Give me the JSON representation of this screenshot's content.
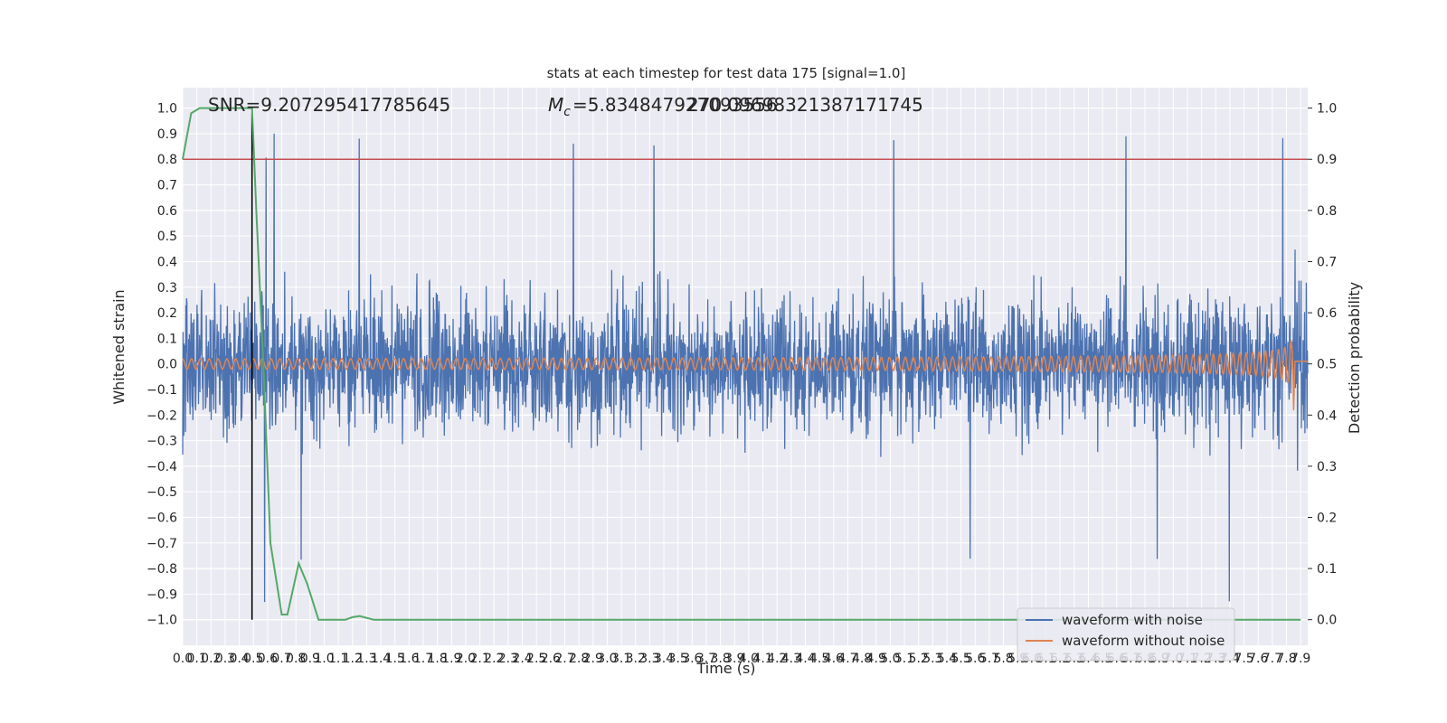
{
  "chart_data": {
    "type": "line",
    "title": "stats at each timestep for test data 175 [signal=1.0]",
    "xlabel": "Time (s)",
    "ylabel": "Whitened strain",
    "y2label": "Detection probability",
    "xlim": [
      0.0,
      7.95
    ],
    "ylim": [
      -1.1,
      1.08
    ],
    "y2lim": [
      -0.05,
      1.04
    ],
    "grid": true,
    "legend_position": "lower-right",
    "x_tick_labels": [
      "0.0",
      "0.1",
      "0.2",
      "0.3",
      "0.4",
      "0.5",
      "0.6",
      "0.7",
      "0.8",
      "0.9",
      "1.0",
      "1.1",
      "1.2",
      "1.3",
      "1.4",
      "1.5",
      "1.6",
      "1.7",
      "1.8",
      "1.9",
      "2.0",
      "2.1",
      "2.2",
      "2.3",
      "2.4",
      "2.5",
      "2.6",
      "2.7",
      "2.8",
      "2.9",
      "3.0",
      "3.1",
      "3.2",
      "3.3",
      "3.4",
      "3.5",
      "3.6",
      "3.7",
      "3.8",
      "3.9",
      "4.0",
      "4.1",
      "4.2",
      "4.3",
      "4.4",
      "4.5",
      "4.6",
      "4.7",
      "4.8",
      "4.9",
      "5.0",
      "5.1",
      "5.2",
      "5.3",
      "5.4",
      "5.5",
      "5.6",
      "5.7",
      "5.8",
      "5.9",
      "6.0",
      "6.1",
      "6.2",
      "6.3",
      "6.4",
      "6.5",
      "6.6",
      "6.7",
      "6.8",
      "6.9",
      "7.0",
      "7.1",
      "7.2",
      "7.3",
      "7.4",
      "7.5",
      "7.6",
      "7.7",
      "7.8",
      "7.9"
    ],
    "y_tick_labels": [
      "1.0",
      "0.9",
      "0.8",
      "0.7",
      "0.6",
      "0.5",
      "0.4",
      "0.3",
      "0.2",
      "0.1",
      "0.0",
      "−0.1",
      "−0.2",
      "−0.3",
      "−0.4",
      "−0.5",
      "−0.6",
      "−0.7",
      "−0.8",
      "−0.9",
      "−1.0"
    ],
    "y2_tick_labels": [
      "1.0",
      "0.9",
      "0.8",
      "0.7",
      "0.6",
      "0.5",
      "0.4",
      "0.3",
      "0.2",
      "0.1",
      "0.0"
    ],
    "annotations": {
      "snr": "SNR=9.207295417785645",
      "mc": "=5.834847927093556",
      "mc_prefix": "M",
      "mc_sub": "c",
      "overlap": "270.09698321387171745"
    },
    "threshold": 0.9,
    "trigger_time": 0.49,
    "series": [
      {
        "name": "waveform with noise",
        "color": "#4c72b0",
        "axis": "left",
        "envelope_max": 0.55,
        "envelope_min": -0.55
      },
      {
        "name": "waveform without noise",
        "color": "#dd8452",
        "axis": "left",
        "envelope_start": 0.02,
        "envelope_end": 0.27,
        "chirp_time": 7.85
      },
      {
        "name": "detection probability",
        "color": "#55a868",
        "axis": "right",
        "x": [
          0.0,
          0.06,
          0.12,
          0.2,
          0.3,
          0.4,
          0.49,
          0.52,
          0.57,
          0.62,
          0.7,
          0.74,
          0.82,
          0.88,
          0.96,
          1.05,
          1.15,
          1.2,
          1.25,
          1.35,
          1.5,
          2.0,
          3.0,
          4.0,
          5.0,
          6.0,
          7.0,
          7.9
        ],
        "values": [
          0.9,
          0.99,
          1.0,
          1.0,
          1.0,
          1.0,
          1.0,
          0.8,
          0.5,
          0.15,
          0.01,
          0.01,
          0.11,
          0.07,
          0.0,
          0.0,
          0.0,
          0.005,
          0.007,
          0.0,
          0.0,
          0.0,
          0.0,
          0.0,
          0.0,
          0.0,
          0.0,
          0.0
        ]
      },
      {
        "name": "threshold",
        "color": "#c44e52",
        "axis": "right"
      },
      {
        "name": "trigger",
        "color": "#000000",
        "axis": "left"
      }
    ]
  }
}
